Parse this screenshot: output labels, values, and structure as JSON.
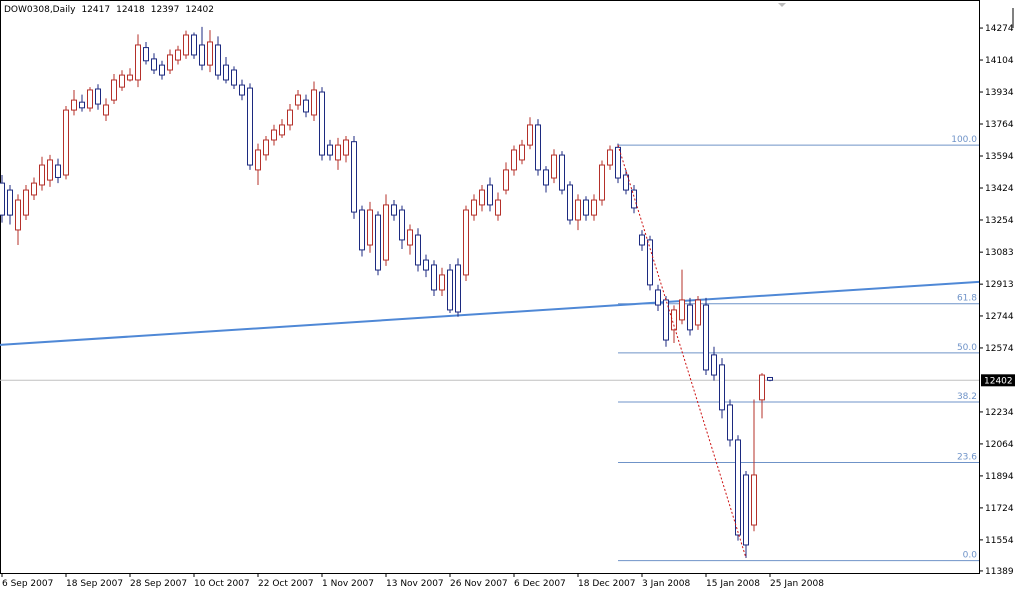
{
  "chart_data": {
    "type": "candlestick",
    "title": "DOW0308,Daily",
    "categories": [
      "6 Sep 2007",
      null,
      null,
      null,
      null,
      null,
      null,
      null,
      "18 Sep 2007",
      null,
      null,
      null,
      null,
      null,
      null,
      null,
      "28 Sep 2007",
      null,
      null,
      null,
      null,
      null,
      null,
      null,
      "10 Oct 2007",
      null,
      null,
      null,
      null,
      null,
      null,
      null,
      "22 Oct 2007",
      null,
      null,
      null,
      null,
      null,
      null,
      null,
      "1 Nov 2007",
      null,
      null,
      null,
      null,
      null,
      null,
      null,
      "13 Nov 2007",
      null,
      null,
      null,
      null,
      null,
      null,
      null,
      "26 Nov 2007",
      null,
      null,
      null,
      null,
      null,
      null,
      null,
      "6 Dec 2007",
      null,
      null,
      null,
      null,
      null,
      null,
      null,
      "18 Dec 2007",
      null,
      null,
      null,
      null,
      null,
      null,
      null,
      "3 Jan 2008",
      null,
      null,
      null,
      null,
      null,
      null,
      null,
      "15 Jan 2008",
      null,
      null,
      null,
      null,
      null,
      null,
      null,
      "25 Jan 2008"
    ],
    "open": [
      13450,
      13413,
      13201,
      13280,
      13387,
      13440,
      13466,
      13546,
      13493,
      13838,
      13880,
      13849,
      13950,
      13812,
      13891,
      13960,
      13998,
      13998,
      14170,
      14110,
      14077,
      14051,
      14104,
      14131,
      14237,
      14184,
      14077,
      14184,
      14077,
      14051,
      13971,
      13955,
      13520,
      13600,
      13679,
      13706,
      13759,
      13865,
      13891,
      13812,
      13934,
      13652,
      13573,
      13599,
      13670,
      13307,
      13121,
      13280,
      13041,
      13334,
      13307,
      13121,
      13174,
      13041,
      13015,
      12882,
      12988,
      13015,
      12962,
      13280,
      13334,
      13440,
      13280,
      13413,
      13520,
      13573,
      13652,
      13759,
      13520,
      13477,
      13599,
      13440,
      13254,
      13360,
      13280,
      13360,
      13546,
      13640,
      13493,
      13413,
      13174,
      13148,
      12882,
      12829,
      12670,
      12723,
      12802,
      12696,
      12802,
      12537,
      12484,
      12271,
      12085,
      11899,
      11633,
      12298,
      12417
    ],
    "high": [
      13493,
      13440,
      13390,
      13440,
      13480,
      13590,
      13600,
      13580,
      13860,
      13945,
      13920,
      13960,
      13975,
      13900,
      14030,
      14050,
      14060,
      14240,
      14200,
      14140,
      14100,
      14160,
      14180,
      14260,
      14250,
      14280,
      14263,
      14230,
      14120,
      14070,
      14000,
      13980,
      13660,
      13700,
      13760,
      13790,
      13870,
      13945,
      13920,
      13990,
      13960,
      13680,
      13690,
      13700,
      13700,
      13330,
      13350,
      13300,
      13390,
      13360,
      13330,
      13230,
      13210,
      13070,
      13040,
      13000,
      13020,
      13050,
      13330,
      13390,
      13440,
      13480,
      13400,
      13560,
      13650,
      13680,
      13800,
      13790,
      13540,
      13630,
      13620,
      13460,
      13390,
      13380,
      13390,
      13570,
      13650,
      13660,
      13520,
      13440,
      13200,
      13170,
      12910,
      12850,
      12800,
      12990,
      12840,
      12850,
      12840,
      12580,
      12520,
      12300,
      12110,
      11920,
      12300,
      12440,
      12418
    ],
    "low": [
      13240,
      13230,
      13121,
      13254,
      13360,
      13410,
      13430,
      13450,
      13470,
      13810,
      13830,
      13830,
      13840,
      13780,
      13870,
      13940,
      13990,
      13960,
      14080,
      14030,
      14000,
      14030,
      14080,
      14110,
      14110,
      14050,
      14040,
      14000,
      13980,
      13950,
      13890,
      13520,
      13440,
      13570,
      13650,
      13690,
      13730,
      13840,
      13800,
      13780,
      13570,
      13570,
      13520,
      13560,
      13260,
      13060,
      13080,
      12960,
      13010,
      13250,
      13100,
      13070,
      12980,
      12950,
      12850,
      12850,
      12760,
      12740,
      12930,
      13250,
      13300,
      13300,
      13250,
      13390,
      13490,
      13550,
      13630,
      13490,
      13400,
      13450,
      13390,
      13230,
      13200,
      13250,
      13250,
      13330,
      13520,
      13450,
      13390,
      13290,
      13090,
      12880,
      12770,
      12580,
      12600,
      12700,
      12640,
      12670,
      12430,
      12400,
      12200,
      12050,
      11550,
      11458,
      11600,
      12200,
      12397
    ],
    "close": [
      13280,
      13280,
      13360,
      13413,
      13450,
      13546,
      13573,
      13480,
      13838,
      13891,
      13850,
      13945,
      13870,
      13865,
      13998,
      14024,
      14024,
      14184,
      14100,
      14051,
      14024,
      14131,
      14157,
      14237,
      14131,
      14077,
      14200,
      14024,
      13998,
      13971,
      13918,
      13546,
      13626,
      13679,
      13732,
      13759,
      13838,
      13918,
      13828,
      13945,
      13599,
      13599,
      13652,
      13679,
      13296,
      13095,
      13307,
      12988,
      13334,
      13280,
      13148,
      13201,
      13015,
      12988,
      12882,
      12962,
      12776,
      12765,
      13307,
      13360,
      13413,
      13334,
      13360,
      13520,
      13626,
      13652,
      13759,
      13520,
      13440,
      13599,
      13413,
      13254,
      13360,
      13280,
      13360,
      13546,
      13626,
      13477,
      13413,
      13318,
      13121,
      12909,
      12802,
      12616,
      12776,
      12829,
      12670,
      12829,
      12457,
      12430,
      12245,
      12085,
      11580,
      11527,
      11899,
      12430,
      12402
    ],
    "bull_color": "#b4302a",
    "bear_color": "#1c2a80",
    "ylim": [
      11378,
      14423
    ],
    "yticks": [
      14274,
      14104,
      13934,
      13764,
      13594,
      13424,
      13254,
      13083,
      12913,
      12744,
      12574,
      12234,
      12064,
      11894,
      11724,
      11554,
      11389
    ],
    "fibonacci": {
      "color": "#6f93c8",
      "x": [
        77,
        96
      ],
      "levels": [
        {
          "value": 13652,
          "label": "100.0"
        },
        {
          "value": 12809,
          "label": "61.8"
        },
        {
          "value": 12548,
          "label": "50.0"
        },
        {
          "value": 12287,
          "label": "38.2"
        },
        {
          "value": 11965,
          "label": "23.6"
        },
        {
          "value": 11444,
          "label": "0.0"
        }
      ]
    },
    "trendline": {
      "color": "#4f88d6",
      "values": [
        12590,
        12925
      ]
    },
    "zigzag": {
      "color": "#cc1010",
      "x": [
        77,
        93
      ],
      "values": [
        13652,
        11458
      ]
    }
  }
}
